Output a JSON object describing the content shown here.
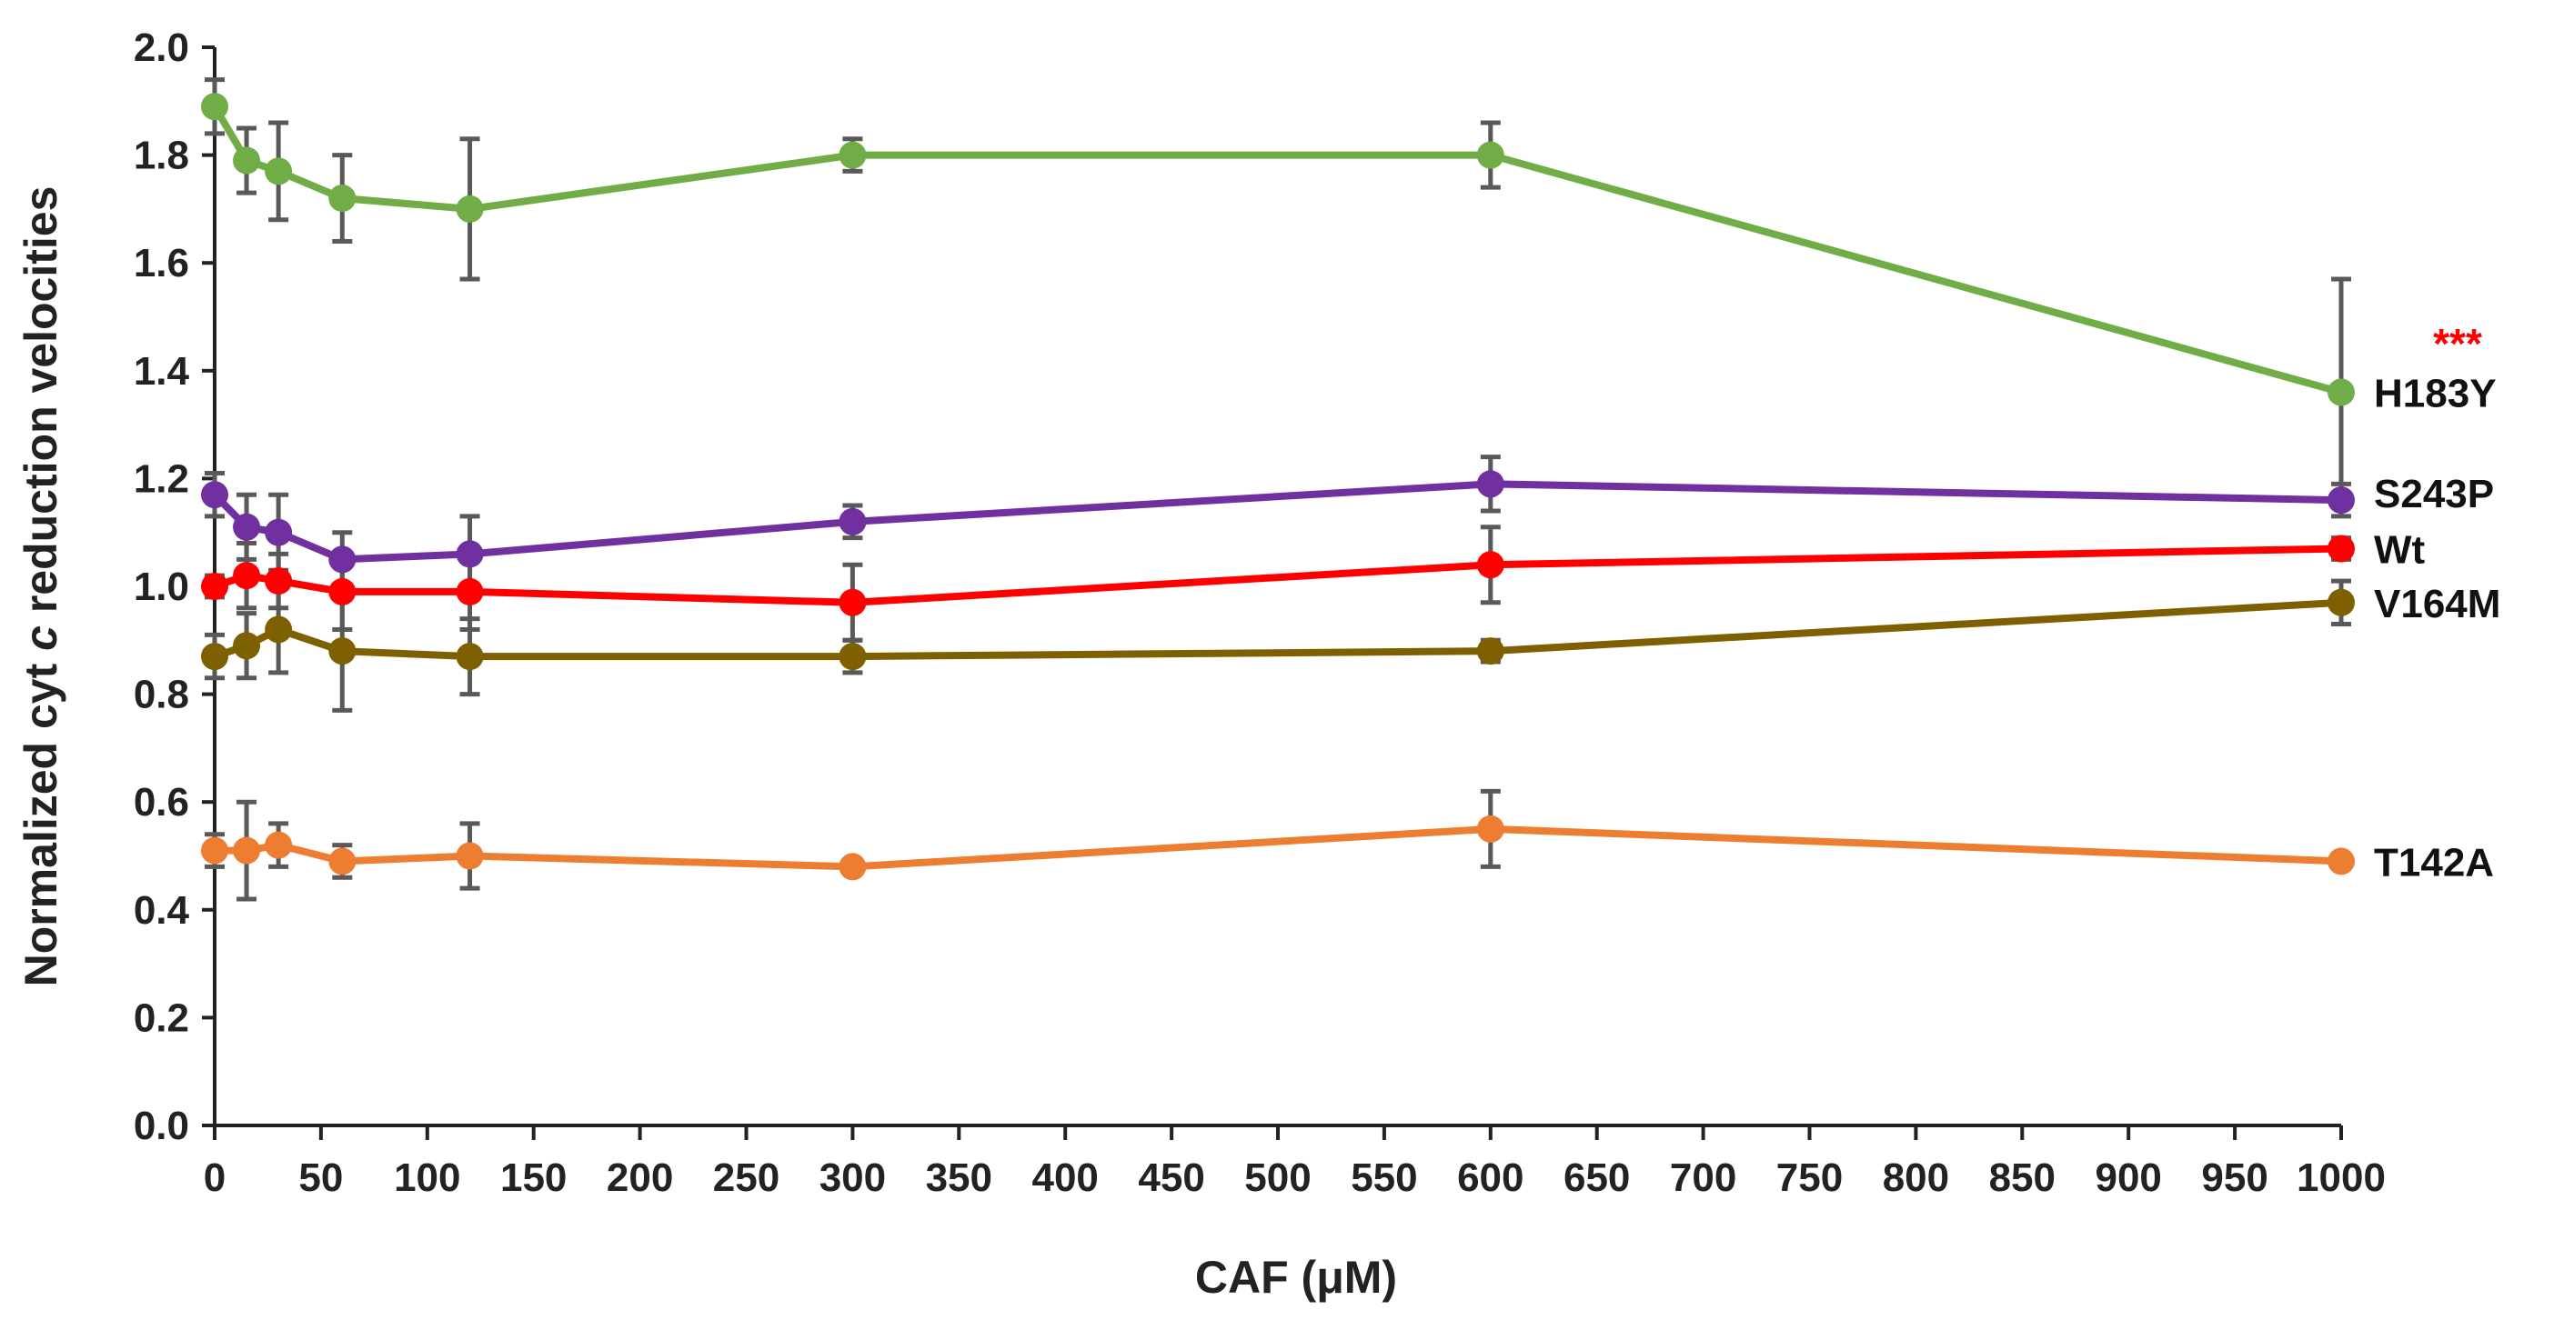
{
  "chart_data": {
    "type": "line",
    "title": "",
    "xlabel": "CAF (μM)",
    "ylabel_parts": [
      "Normalized cyt ",
      "c",
      " reduction velocities"
    ],
    "xlim": [
      0,
      1000
    ],
    "ylim": [
      0,
      2.0
    ],
    "x_ticks": [
      0,
      50,
      100,
      150,
      200,
      250,
      300,
      350,
      400,
      450,
      500,
      550,
      600,
      650,
      700,
      750,
      800,
      850,
      900,
      950,
      1000
    ],
    "y_ticks": [
      "0.0",
      "0.2",
      "0.4",
      "0.6",
      "0.8",
      "1.0",
      "1.2",
      "1.4",
      "1.6",
      "1.8",
      "2.0"
    ],
    "grid": false,
    "x": [
      0,
      15,
      30,
      60,
      120,
      300,
      600,
      1000
    ],
    "series": [
      {
        "name": "H183Y",
        "color": "#70ad47",
        "values": [
          1.89,
          1.79,
          1.77,
          1.72,
          1.7,
          1.8,
          1.8,
          1.36
        ],
        "errors": [
          0.05,
          0.06,
          0.09,
          0.08,
          0.13,
          0.03,
          0.06,
          0.21
        ]
      },
      {
        "name": "S243P",
        "color": "#7030a0",
        "values": [
          1.17,
          1.11,
          1.1,
          1.05,
          1.06,
          1.12,
          1.19,
          1.16
        ],
        "errors": [
          0.04,
          0.06,
          0.07,
          0.05,
          0.07,
          0.03,
          0.05,
          0.03
        ]
      },
      {
        "name": "Wt",
        "color": "#ff0000",
        "values": [
          1.0,
          1.02,
          1.01,
          0.99,
          0.99,
          0.97,
          1.04,
          1.07
        ],
        "errors": [
          0.02,
          0.06,
          0.05,
          0.07,
          0.07,
          0.07,
          0.07,
          0.02
        ]
      },
      {
        "name": "V164M",
        "color": "#7f6000",
        "values": [
          0.87,
          0.89,
          0.92,
          0.88,
          0.87,
          0.87,
          0.88,
          0.97
        ],
        "errors": [
          0.04,
          0.06,
          0.08,
          0.11,
          0.07,
          0.03,
          0.02,
          0.04
        ]
      },
      {
        "name": "T142A",
        "color": "#ed7d31",
        "values": [
          0.51,
          0.51,
          0.52,
          0.49,
          0.5,
          0.48,
          0.55,
          0.49
        ],
        "errors": [
          0.03,
          0.09,
          0.04,
          0.03,
          0.06,
          0.01,
          0.07,
          0.01
        ]
      }
    ],
    "annotations": [
      {
        "text": "***",
        "color": "#ff0000",
        "series": "H183Y",
        "x": 1000,
        "y": 1.46
      }
    ],
    "error_bar_color": "#595959",
    "axis_color": "#222222"
  }
}
